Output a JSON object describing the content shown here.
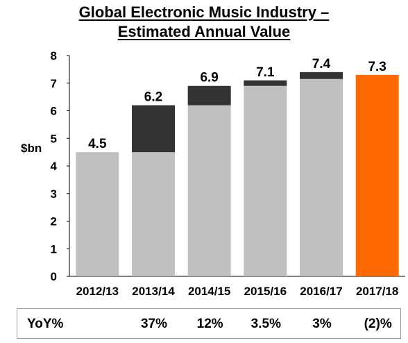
{
  "title": {
    "line1": "Global Electronic Music Industry –",
    "line2": "Estimated Annual Value"
  },
  "chart_data": {
    "type": "bar",
    "stacked": true,
    "ylabel": "$bn",
    "ylim": [
      0,
      8
    ],
    "yticks": [
      0,
      1,
      2,
      3,
      4,
      5,
      6,
      7,
      8
    ],
    "categories": [
      "2012/13",
      "2013/14",
      "2014/15",
      "2015/16",
      "2016/17",
      "2017/18"
    ],
    "totals": [
      4.5,
      6.2,
      6.9,
      7.1,
      7.4,
      7.3
    ],
    "total_labels": [
      "4.5",
      "6.2",
      "6.9",
      "7.1",
      "7.4",
      "7.3"
    ],
    "series": [
      {
        "values": [
          4.5,
          4.5,
          6.2,
          6.9,
          7.15,
          0
        ],
        "color": "#c0c0c0"
      },
      {
        "values": [
          0,
          1.7,
          0.7,
          0.2,
          0.25,
          0
        ],
        "color": "#333333"
      },
      {
        "values": [
          0,
          0,
          0,
          0,
          0,
          7.3
        ],
        "color": "#ff6a00"
      }
    ],
    "grid": false
  },
  "yoy": {
    "label": "YoY%",
    "values": [
      "",
      "37%",
      "12%",
      "3.5%",
      "3%",
      "(2)%"
    ]
  }
}
